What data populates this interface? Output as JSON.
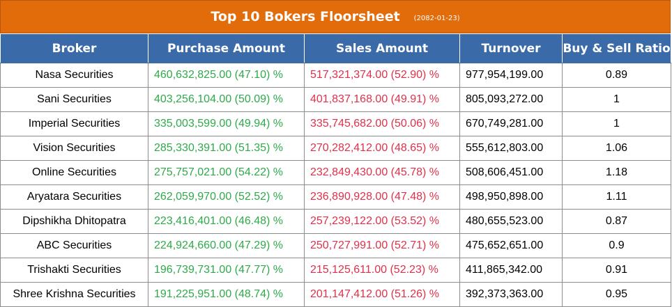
{
  "title": "Top 10 Bokers Floorsheet",
  "date": "(2082-01-23)",
  "colors": {
    "header_bg": "#e36c0a",
    "column_header_bg": "#3a6aa8",
    "buy": "#2eaa4a",
    "sell": "#e0304a"
  },
  "columns": [
    "Broker",
    "Purchase Amount",
    "Sales Amount",
    "Turnover",
    "Buy & Sell Ratio"
  ],
  "rows": [
    {
      "broker": "Nasa Securities",
      "purchase": "460,632,825.00 (47.10) %",
      "sales": "517,321,374.00 (52.90) %",
      "turnover": "977,954,199.00",
      "ratio": "0.89"
    },
    {
      "broker": "Sani Securities",
      "purchase": "403,256,104.00 (50.09) %",
      "sales": "401,837,168.00 (49.91) %",
      "turnover": "805,093,272.00",
      "ratio": "1"
    },
    {
      "broker": "Imperial Securities",
      "purchase": "335,003,599.00 (49.94) %",
      "sales": "335,745,682.00 (50.06) %",
      "turnover": "670,749,281.00",
      "ratio": "1"
    },
    {
      "broker": "Vision Securities",
      "purchase": "285,330,391.00 (51.35) %",
      "sales": "270,282,412.00 (48.65) %",
      "turnover": "555,612,803.00",
      "ratio": "1.06"
    },
    {
      "broker": "Online Securities",
      "purchase": "275,757,021.00 (54.22) %",
      "sales": "232,849,430.00 (45.78) %",
      "turnover": "508,606,451.00",
      "ratio": "1.18"
    },
    {
      "broker": "Aryatara Securities",
      "purchase": "262,059,970.00 (52.52) %",
      "sales": "236,890,928.00 (47.48) %",
      "turnover": "498,950,898.00",
      "ratio": "1.11"
    },
    {
      "broker": "Dipshikha Dhitopatra",
      "purchase": "223,416,401.00 (46.48) %",
      "sales": "257,239,122.00 (53.52) %",
      "turnover": "480,655,523.00",
      "ratio": "0.87"
    },
    {
      "broker": "ABC Securities",
      "purchase": "224,924,660.00 (47.29) %",
      "sales": "250,727,991.00 (52.71) %",
      "turnover": "475,652,651.00",
      "ratio": "0.9"
    },
    {
      "broker": "Trishakti Securities",
      "purchase": "196,739,731.00 (47.77) %",
      "sales": "215,125,611.00 (52.23) %",
      "turnover": "411,865,342.00",
      "ratio": "0.91"
    },
    {
      "broker": "Shree Krishna Securities",
      "purchase": "191,225,951.00 (48.74) %",
      "sales": "201,147,412.00 (51.26) %",
      "turnover": "392,373,363.00",
      "ratio": "0.95"
    }
  ]
}
